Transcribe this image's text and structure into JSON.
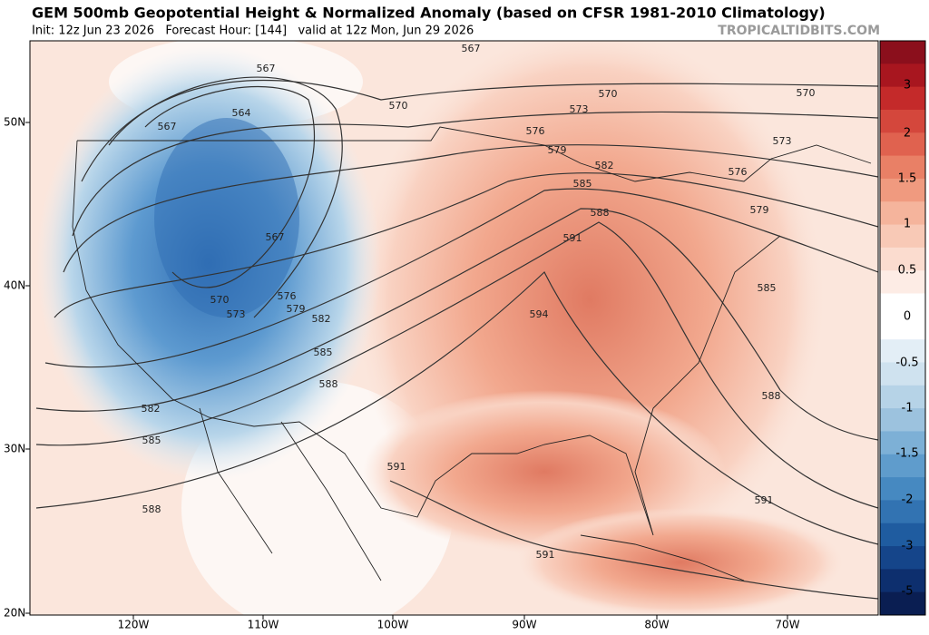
{
  "header": {
    "title": "GEM 500mb Geopotential Height & Normalized Anomaly (based on CFSR 1981-2010 Climatology)",
    "subtitle": "Init: 12z Jun 23 2026   Forecast Hour: [144]   valid at 12z Mon, Jun 29 2026",
    "watermark": "TROPICALTIDBITS.COM"
  },
  "colorbar": {
    "labels": [
      3,
      2,
      1.5,
      1,
      0.5,
      0,
      -0.5,
      -1,
      -1.5,
      -2,
      -3,
      -5
    ]
  },
  "latitude_labels": [
    "50N",
    "40N",
    "30N",
    "20N"
  ],
  "longitude_labels": [
    "120W",
    "110W",
    "100W",
    "90W",
    "80W",
    "70W"
  ],
  "contour_labels": [
    "567",
    "567",
    "564",
    "567",
    "567",
    "570",
    "573",
    "576",
    "579",
    "582",
    "585",
    "588",
    "582",
    "585",
    "588",
    "570",
    "573",
    "576",
    "579",
    "582",
    "585",
    "588",
    "591",
    "594",
    "570",
    "573",
    "576",
    "579",
    "585",
    "588",
    "591",
    "591",
    "591",
    "570"
  ]
}
